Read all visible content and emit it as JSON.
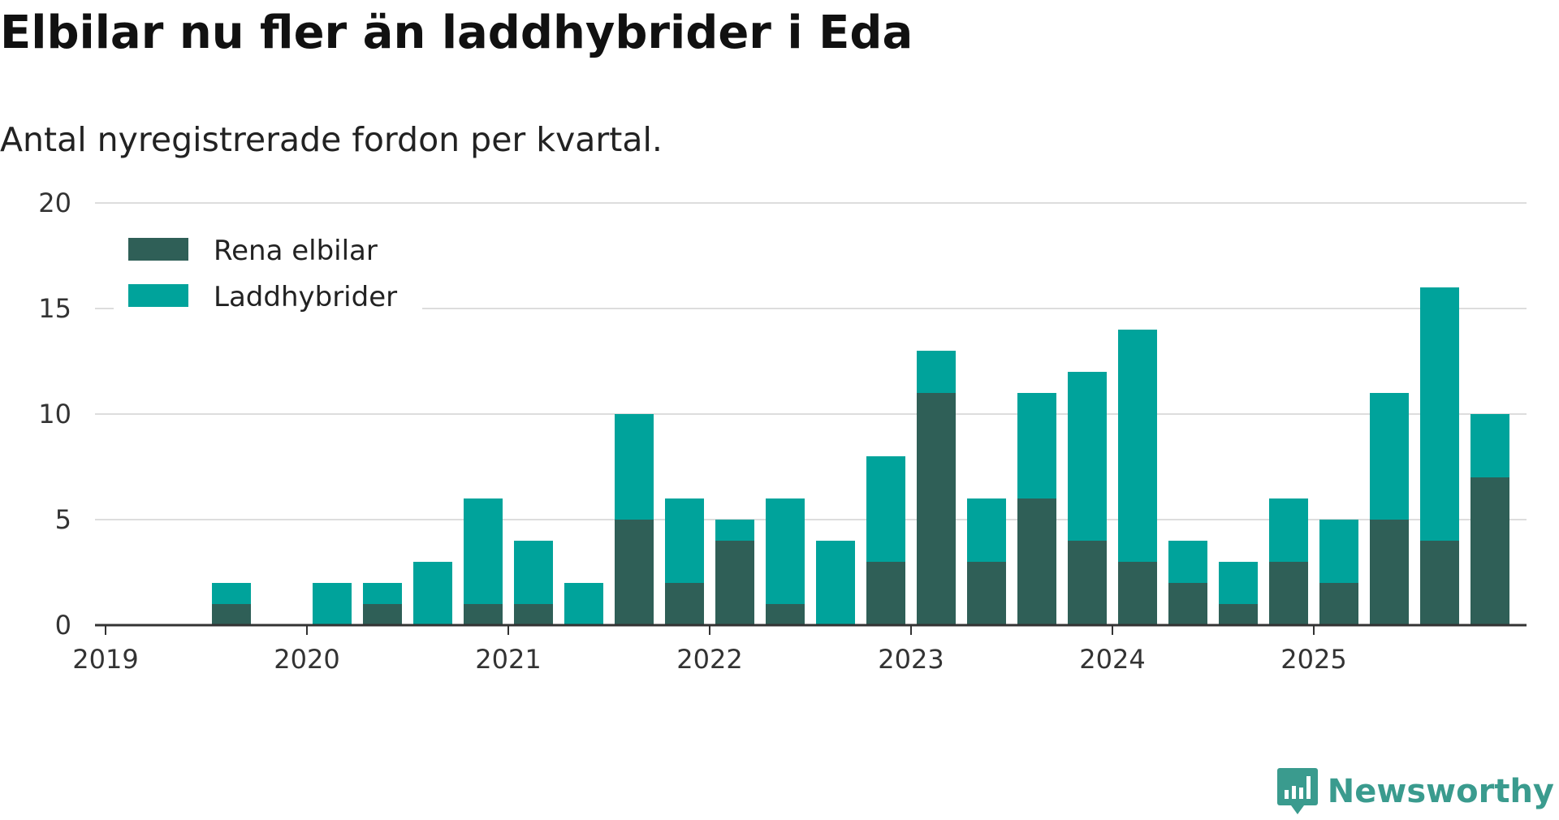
{
  "title": "Elbilar nu fler än laddhybrider i Eda",
  "subtitle": "Antal nyregistrerade fordon per kvartal.",
  "logo": {
    "text": "Newsworthy",
    "color": "#3a9b8e"
  },
  "chart_data": {
    "type": "bar",
    "stacked": true,
    "title": "Elbilar nu fler än laddhybrider i Eda",
    "subtitle": "Antal nyregistrerade fordon per kvartal.",
    "xlabel": "",
    "ylabel": "",
    "ylim": [
      0,
      20
    ],
    "yticks": [
      0,
      5,
      10,
      15,
      20
    ],
    "grid": true,
    "legend_position": "top-left",
    "year_labels": [
      "2019",
      "2020",
      "2021",
      "2022",
      "2023",
      "2024",
      "2025"
    ],
    "categories": [
      "2019 Q1",
      "2019 Q2",
      "2019 Q3",
      "2019 Q4",
      "2020 Q1",
      "2020 Q2",
      "2020 Q3",
      "2020 Q4",
      "2021 Q1",
      "2021 Q2",
      "2021 Q3",
      "2021 Q4",
      "2022 Q1",
      "2022 Q2",
      "2022 Q3",
      "2022 Q4",
      "2023 Q1",
      "2023 Q2",
      "2023 Q3",
      "2023 Q4",
      "2024 Q1",
      "2024 Q2",
      "2024 Q3",
      "2024 Q4",
      "2025 Q1",
      "2025 Q2",
      "2025 Q3"
    ],
    "series": [
      {
        "name": "Rena elbilar",
        "color": "#2f5f57",
        "values": [
          0,
          1,
          0,
          0,
          1,
          0,
          1,
          1,
          0,
          5,
          2,
          4,
          1,
          0,
          3,
          11,
          3,
          6,
          4,
          3,
          2,
          1,
          3,
          2,
          5,
          4,
          7
        ]
      },
      {
        "name": "Laddhybrider",
        "color": "#00a39b",
        "values": [
          0,
          1,
          0,
          2,
          1,
          3,
          5,
          3,
          2,
          5,
          4,
          1,
          5,
          4,
          5,
          2,
          3,
          5,
          8,
          11,
          2,
          2,
          3,
          3,
          6,
          12,
          3
        ]
      }
    ]
  }
}
